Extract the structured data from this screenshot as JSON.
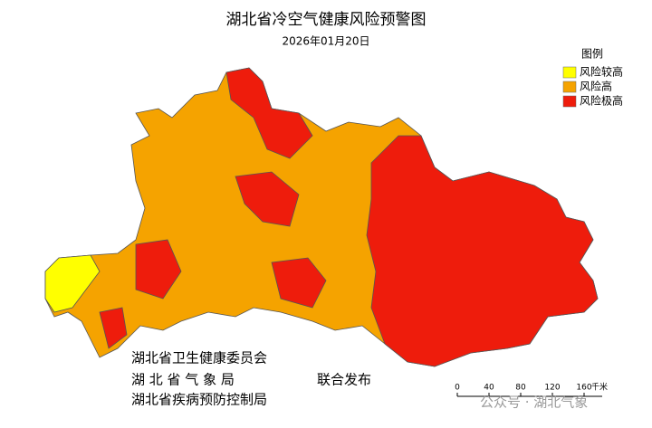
{
  "header": {
    "title": "湖北省冷空气健康风险预警图",
    "date": "2026年01月20日"
  },
  "legend": {
    "title": "图例",
    "items": [
      {
        "label": "风险较高",
        "color": "#ffff00"
      },
      {
        "label": "风险高",
        "color": "#f5a300"
      },
      {
        "label": "风险极高",
        "color": "#ee1c0c"
      }
    ]
  },
  "issuers": {
    "lines": [
      "湖北省卫生健康委员会",
      "湖 北 省 气 象 局",
      "湖北省疾病预防控制局"
    ],
    "joint": "联合发布"
  },
  "scale_bar": {
    "ticks": [
      0,
      40,
      80,
      120,
      160
    ],
    "unit": "千米"
  },
  "watermark": "公众号 · 湖北气象"
}
